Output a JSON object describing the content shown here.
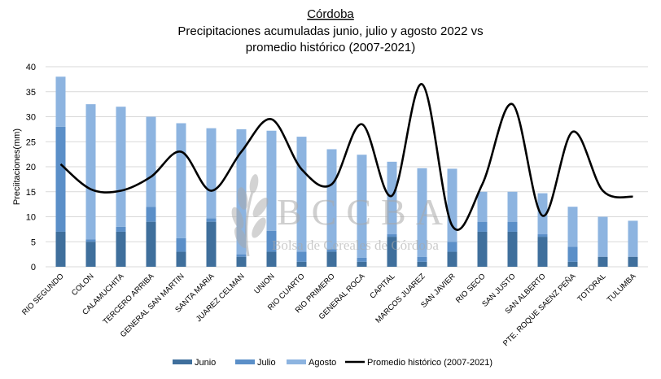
{
  "chart_data": {
    "type": "bar",
    "stacked": true,
    "title": "Córdoba",
    "subtitle_lines": [
      "Precipitaciones acumuladas junio, julio y agosto 2022 vs",
      "promedio histórico (2007-2021)"
    ],
    "ylabel": "Preciitaciones(mm)",
    "xlabel": "",
    "ylim": [
      0,
      40
    ],
    "yticks": [
      0,
      5,
      10,
      15,
      20,
      25,
      30,
      35,
      40
    ],
    "grid": true,
    "legend_position": "bottom",
    "categories": [
      "RIO SEGUNDO",
      "COLON",
      "CALAMUCHITA",
      "TERCERO ARRIBA",
      "GENERAL SAN MARTIN",
      "SANTA MARIA",
      "JUAREZ CELMAN",
      "UNION",
      "RIO CUARTO",
      "RIO PRIMERO",
      "GENERAL ROCA",
      "CAPITAL",
      "MARCOS JUAREZ",
      "SAN JAVIER",
      "RIO SECO",
      "SAN JUSTO",
      "SAN ALBERTO",
      "PTE. ROQUE SAENZ PEÑA",
      "TOTORAL",
      "TULUMBA"
    ],
    "series": [
      {
        "name": "Junio",
        "kind": "bar",
        "color": "#3f6f9c",
        "values": [
          7,
          5,
          7,
          9,
          3,
          9,
          2,
          3,
          1,
          3,
          1,
          6,
          1,
          3,
          7,
          7,
          6,
          1,
          2,
          2
        ]
      },
      {
        "name": "Julio",
        "kind": "bar",
        "color": "#5b8fc8",
        "values": [
          21,
          0.5,
          1,
          3,
          2.7,
          0.7,
          0.5,
          4.2,
          2,
          0.5,
          0.8,
          0.5,
          1,
          2,
          2,
          2,
          0.5,
          3,
          0,
          0
        ]
      },
      {
        "name": "Agosto",
        "kind": "bar",
        "color": "#8db4e0",
        "values": [
          10,
          27,
          24,
          18,
          23,
          18,
          25,
          20,
          23,
          20,
          20.6,
          14.5,
          17.7,
          14.6,
          6,
          6,
          8.2,
          8,
          8,
          7.2
        ]
      },
      {
        "name": "Promedio histórico (2007-2021)",
        "kind": "line",
        "color": "#000000",
        "values": [
          20.5,
          15.5,
          15.2,
          18,
          23,
          15.2,
          23,
          29.5,
          19.5,
          16.5,
          28.5,
          14.2,
          36.5,
          8.2,
          16.5,
          32.5,
          10.2,
          27,
          15.2,
          14
        ]
      }
    ],
    "watermark": {
      "logo_text": "BCCBA",
      "caption": "Bolsa de Cereales de Córdoba"
    }
  }
}
